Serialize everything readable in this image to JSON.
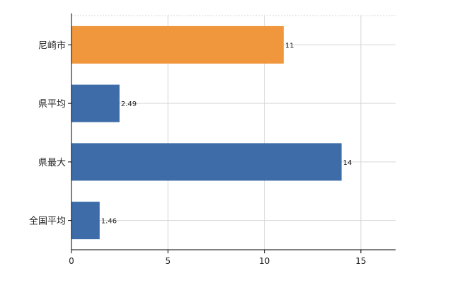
{
  "chart_data": {
    "type": "bar",
    "orientation": "horizontal",
    "categories": [
      "尼崎市",
      "県平均",
      "県最大",
      "全国平均"
    ],
    "values": [
      11,
      2.49,
      14,
      1.46
    ],
    "value_labels": [
      "11",
      "2.49",
      "14",
      "1.46"
    ],
    "colors": [
      "#f0963c",
      "#3d6ca9",
      "#3d6ca9",
      "#3d6ca9"
    ],
    "xlim": [
      0,
      16.8
    ],
    "xticks": [
      0,
      5,
      10,
      15
    ],
    "xtick_labels": [
      "0",
      "5",
      "10",
      "15"
    ],
    "grid": true,
    "grid_color": "#d6d6d6",
    "axis_color": "#000000",
    "title": "",
    "xlabel": "",
    "ylabel": ""
  }
}
